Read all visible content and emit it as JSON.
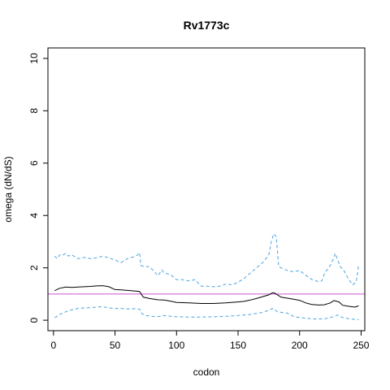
{
  "chart_data": {
    "type": "line",
    "title": "Rv1773c",
    "xlabel": "codon",
    "ylabel": "omega (dN/dS)",
    "xlim": [
      -4.5,
      253
    ],
    "ylim": [
      -0.4,
      10.4
    ],
    "x_ticks": [
      0,
      50,
      100,
      150,
      200,
      250
    ],
    "y_ticks": [
      0,
      2,
      4,
      6,
      8,
      10
    ],
    "reference_line": {
      "y": 1,
      "color": "#cc55cc"
    },
    "colors": {
      "omega": "#000000",
      "bounds": "#4aa3df"
    },
    "grid": false,
    "legend": "none",
    "series": [
      {
        "role": "omega",
        "style": "solid",
        "x": [
          1,
          5,
          10,
          15,
          20,
          25,
          30,
          35,
          40,
          45,
          50,
          55,
          60,
          65,
          70,
          73,
          78,
          85,
          90,
          95,
          100,
          110,
          120,
          130,
          140,
          150,
          155,
          160,
          165,
          170,
          175,
          178,
          180,
          185,
          190,
          195,
          200,
          205,
          210,
          215,
          220,
          225,
          228,
          232,
          235,
          240,
          245,
          248
        ],
        "y": [
          1.13,
          1.22,
          1.27,
          1.25,
          1.27,
          1.28,
          1.29,
          1.31,
          1.32,
          1.28,
          1.17,
          1.16,
          1.14,
          1.12,
          1.1,
          0.88,
          0.83,
          0.78,
          0.77,
          0.73,
          0.68,
          0.66,
          0.64,
          0.64,
          0.66,
          0.7,
          0.72,
          0.77,
          0.83,
          0.9,
          0.97,
          1.05,
          1.03,
          0.88,
          0.84,
          0.8,
          0.76,
          0.66,
          0.6,
          0.58,
          0.59,
          0.66,
          0.75,
          0.7,
          0.57,
          0.53,
          0.5,
          0.55
        ]
      },
      {
        "role": "upper",
        "style": "dashed",
        "x": [
          1,
          3,
          5,
          8,
          10,
          12,
          15,
          18,
          20,
          25,
          30,
          35,
          40,
          45,
          50,
          55,
          60,
          65,
          68,
          70,
          71,
          73,
          78,
          82,
          85,
          88,
          90,
          95,
          100,
          105,
          110,
          115,
          120,
          125,
          130,
          135,
          140,
          145,
          150,
          155,
          160,
          165,
          170,
          175,
          177,
          179,
          181,
          183,
          185,
          190,
          195,
          200,
          205,
          210,
          215,
          218,
          220,
          222,
          225,
          227,
          229,
          231,
          233,
          236,
          240,
          243,
          246,
          248
        ],
        "y": [
          2.45,
          2.35,
          2.5,
          2.5,
          2.55,
          2.45,
          2.5,
          2.4,
          2.35,
          2.4,
          2.35,
          2.38,
          2.45,
          2.38,
          2.3,
          2.2,
          2.35,
          2.42,
          2.48,
          2.58,
          2.1,
          2.05,
          2.05,
          1.85,
          1.7,
          1.92,
          1.8,
          1.75,
          1.55,
          1.55,
          1.5,
          1.55,
          1.3,
          1.3,
          1.28,
          1.3,
          1.38,
          1.35,
          1.45,
          1.6,
          1.8,
          2.0,
          2.2,
          2.5,
          3.0,
          3.3,
          3.2,
          2.05,
          2.0,
          1.9,
          1.85,
          1.9,
          1.72,
          1.55,
          1.48,
          1.5,
          1.75,
          1.9,
          2.1,
          2.3,
          2.55,
          2.3,
          2.05,
          1.9,
          1.55,
          1.35,
          1.45,
          2.1
        ]
      },
      {
        "role": "lower",
        "style": "dashed",
        "x": [
          1,
          3,
          5,
          8,
          10,
          15,
          20,
          25,
          30,
          35,
          40,
          45,
          50,
          55,
          60,
          65,
          70,
          72,
          75,
          80,
          85,
          90,
          95,
          100,
          110,
          120,
          130,
          140,
          150,
          160,
          165,
          170,
          175,
          178,
          180,
          182,
          185,
          190,
          195,
          200,
          205,
          210,
          215,
          220,
          225,
          228,
          231,
          235,
          240,
          245,
          248
        ],
        "y": [
          0.1,
          0.15,
          0.22,
          0.28,
          0.32,
          0.4,
          0.45,
          0.47,
          0.48,
          0.5,
          0.52,
          0.47,
          0.45,
          0.45,
          0.43,
          0.44,
          0.42,
          0.24,
          0.18,
          0.15,
          0.14,
          0.18,
          0.15,
          0.13,
          0.12,
          0.12,
          0.13,
          0.15,
          0.18,
          0.22,
          0.26,
          0.3,
          0.38,
          0.45,
          0.4,
          0.32,
          0.3,
          0.27,
          0.15,
          0.1,
          0.08,
          0.05,
          0.05,
          0.05,
          0.1,
          0.15,
          0.2,
          0.1,
          0.06,
          0.03,
          0.02
        ]
      }
    ]
  }
}
